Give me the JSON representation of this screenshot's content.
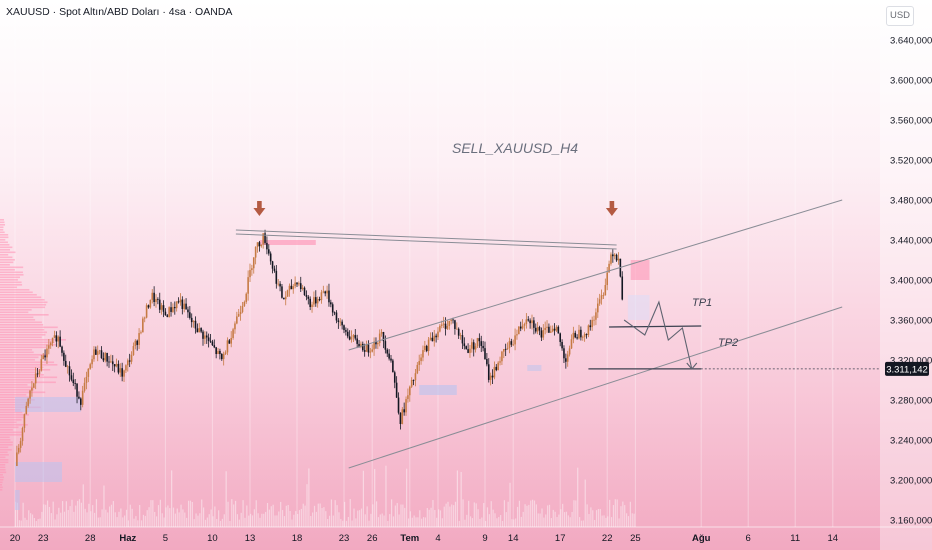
{
  "header": {
    "symbol_line": "XAUUSD · Spot Altın/ABD Doları · 4sa · OANDA",
    "currency": "USD"
  },
  "colors": {
    "candle_up": "#c67a43",
    "candle_down": "#131722",
    "channel_line": "#8a8d96",
    "arrow_marker": "#b45a42",
    "price_tag_bg": "#131722",
    "volume_profile": "#ff8fb2"
  },
  "chart_data": {
    "type": "candlestick",
    "symbol": "XAUUSD",
    "timeframe": "4sa",
    "ylim": [
      3130,
      3680
    ],
    "y_ticks": [
      {
        "value": 3640,
        "label": "3.640,000"
      },
      {
        "value": 3600,
        "label": "3.600,000"
      },
      {
        "value": 3560,
        "label": "3.560,000"
      },
      {
        "value": 3520,
        "label": "3.520,000"
      },
      {
        "value": 3480,
        "label": "3.480,000"
      },
      {
        "value": 3440,
        "label": "3.440,000"
      },
      {
        "value": 3400,
        "label": "3.400,000"
      },
      {
        "value": 3360,
        "label": "3.360,000"
      },
      {
        "value": 3320,
        "label": "3.320,000"
      },
      {
        "value": 3280,
        "label": "3.280,000"
      },
      {
        "value": 3240,
        "label": "3.240,000"
      },
      {
        "value": 3200,
        "label": "3.200,000"
      },
      {
        "value": 3160,
        "label": "3.160,000"
      }
    ],
    "x_ticks": [
      {
        "day": 0,
        "label": "20"
      },
      {
        "day": 3,
        "label": "23"
      },
      {
        "day": 8,
        "label": "28"
      },
      {
        "day": 12,
        "label": "Haz"
      },
      {
        "day": 16,
        "label": "5"
      },
      {
        "day": 21,
        "label": "10"
      },
      {
        "day": 25,
        "label": "13"
      },
      {
        "day": 30,
        "label": "18"
      },
      {
        "day": 35,
        "label": "23"
      },
      {
        "day": 38,
        "label": "26"
      },
      {
        "day": 42,
        "label": "Tem"
      },
      {
        "day": 45,
        "label": "4"
      },
      {
        "day": 50,
        "label": "9"
      },
      {
        "day": 53,
        "label": "14"
      },
      {
        "day": 58,
        "label": "17"
      },
      {
        "day": 63,
        "label": "22"
      },
      {
        "day": 66,
        "label": "25"
      },
      {
        "day": 73,
        "label": "Ağu"
      },
      {
        "day": 78,
        "label": "6"
      },
      {
        "day": 83,
        "label": "11"
      },
      {
        "day": 87,
        "label": "14"
      }
    ],
    "close_path": [
      [
        0,
        3214
      ],
      [
        1.5,
        3285
      ],
      [
        3,
        3322
      ],
      [
        4.5,
        3345
      ],
      [
        6,
        3300
      ],
      [
        7,
        3280
      ],
      [
        8.5,
        3330
      ],
      [
        10,
        3320
      ],
      [
        11.5,
        3305
      ],
      [
        13,
        3340
      ],
      [
        14.5,
        3385
      ],
      [
        16,
        3365
      ],
      [
        17.5,
        3380
      ],
      [
        19,
        3355
      ],
      [
        20.5,
        3340
      ],
      [
        22,
        3320
      ],
      [
        23.5,
        3360
      ],
      [
        24.5,
        3385
      ],
      [
        25.5,
        3430
      ],
      [
        26.5,
        3444
      ],
      [
        27.5,
        3410
      ],
      [
        28.5,
        3380
      ],
      [
        30,
        3400
      ],
      [
        31.5,
        3375
      ],
      [
        33,
        3390
      ],
      [
        34.5,
        3355
      ],
      [
        36,
        3340
      ],
      [
        37.5,
        3330
      ],
      [
        39,
        3345
      ],
      [
        40,
        3320
      ],
      [
        41,
        3260
      ],
      [
        42,
        3290
      ],
      [
        43.5,
        3330
      ],
      [
        45,
        3350
      ],
      [
        46.5,
        3360
      ],
      [
        48,
        3330
      ],
      [
        49.5,
        3340
      ],
      [
        50.5,
        3300
      ],
      [
        51.5,
        3320
      ],
      [
        53,
        3340
      ],
      [
        54.5,
        3365
      ],
      [
        56,
        3345
      ],
      [
        57.5,
        3355
      ],
      [
        58.5,
        3320
      ],
      [
        59.5,
        3345
      ],
      [
        61,
        3350
      ],
      [
        62.5,
        3385
      ],
      [
        63.5,
        3430
      ],
      [
        64.3,
        3420
      ],
      [
        64.8,
        3360
      ]
    ],
    "annotations": {
      "title": "SELL_XAUUSD_H4",
      "tp1_label": "TP1",
      "tp2_label": "TP2",
      "tp1_price": 3352,
      "tp2_price": 3311.142,
      "resistance_line": [
        [
          23.5,
          3450
        ],
        [
          64,
          3435
        ]
      ],
      "channel_upper": [
        [
          35.5,
          3330
        ],
        [
          88,
          3480
        ]
      ],
      "channel_lower": [
        [
          35.5,
          3212
        ],
        [
          88,
          3373
        ]
      ],
      "sell_arrow_days": [
        26,
        63.5
      ],
      "current_price_label": "3.311,142",
      "current_price": 3311.142
    }
  }
}
